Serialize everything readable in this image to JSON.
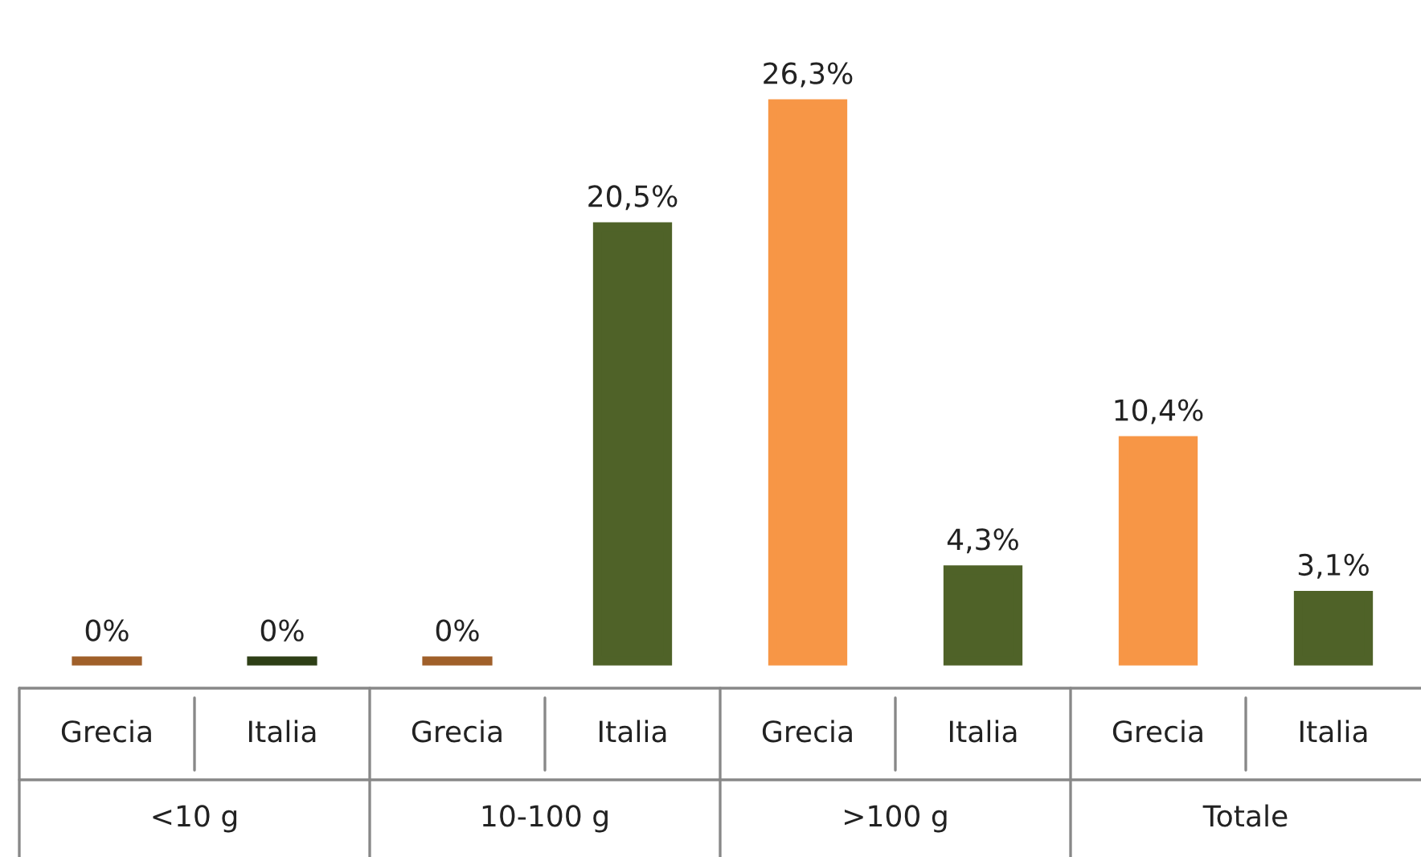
{
  "chart_data": {
    "type": "bar",
    "categories": [
      "Grecia",
      "Italia",
      "Grecia",
      "Italia",
      "Grecia",
      "Italia",
      "Grecia",
      "Italia"
    ],
    "values": [
      0,
      0,
      0,
      20.5,
      26.3,
      4.3,
      10.4,
      3.1
    ],
    "colors": [
      "#a0602a",
      "#2e3f16",
      "#a0602a",
      "#4f6228",
      "#f79646",
      "#4f6228",
      "#f79646",
      "#4f6228"
    ],
    "value_labels": [
      "0%",
      "0%",
      "0%",
      "20,5%",
      "26,3%",
      "4,3%",
      "10,4%",
      "3,1%"
    ],
    "annotations": [
      "<10 g",
      "10-100 g",
      ">100 g",
      "Totale"
    ],
    "legend": false
  }
}
